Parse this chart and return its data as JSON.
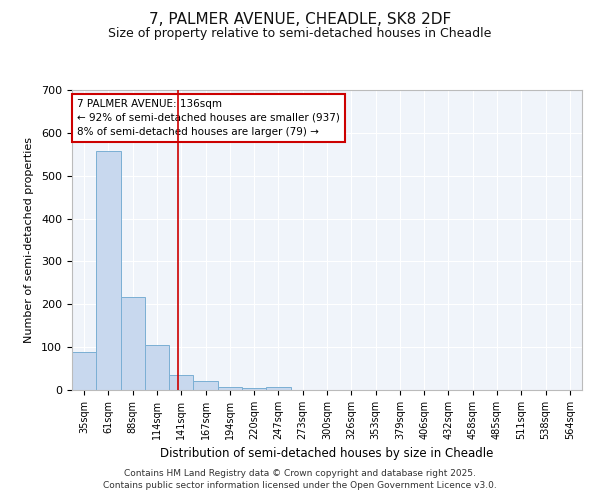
{
  "title": "7, PALMER AVENUE, CHEADLE, SK8 2DF",
  "subtitle": "Size of property relative to semi-detached houses in Cheadle",
  "xlabel": "Distribution of semi-detached houses by size in Cheadle",
  "ylabel": "Number of semi-detached properties",
  "categories": [
    "35sqm",
    "61sqm",
    "88sqm",
    "114sqm",
    "141sqm",
    "167sqm",
    "194sqm",
    "220sqm",
    "247sqm",
    "273sqm",
    "300sqm",
    "326sqm",
    "353sqm",
    "379sqm",
    "406sqm",
    "432sqm",
    "458sqm",
    "485sqm",
    "511sqm",
    "538sqm",
    "564sqm"
  ],
  "values": [
    88,
    557,
    217,
    105,
    35,
    22,
    7,
    5,
    7,
    0,
    0,
    0,
    0,
    0,
    0,
    0,
    0,
    0,
    0,
    0,
    0
  ],
  "bar_color": "#c8d8ee",
  "bar_edge_color": "#7bafd4",
  "background_color": "#ffffff",
  "plot_bg_color": "#f0f4fa",
  "grid_color": "#ffffff",
  "vline_x": 4.0,
  "vline_color": "#cc0000",
  "annotation_text": "7 PALMER AVENUE: 136sqm\n← 92% of semi-detached houses are smaller (937)\n8% of semi-detached houses are larger (79) →",
  "annotation_box_color": "#ffffff",
  "annotation_box_edge": "#cc0000",
  "ylim": [
    0,
    700
  ],
  "yticks": [
    0,
    100,
    200,
    300,
    400,
    500,
    600,
    700
  ],
  "footer1": "Contains HM Land Registry data © Crown copyright and database right 2025.",
  "footer2": "Contains public sector information licensed under the Open Government Licence v3.0."
}
